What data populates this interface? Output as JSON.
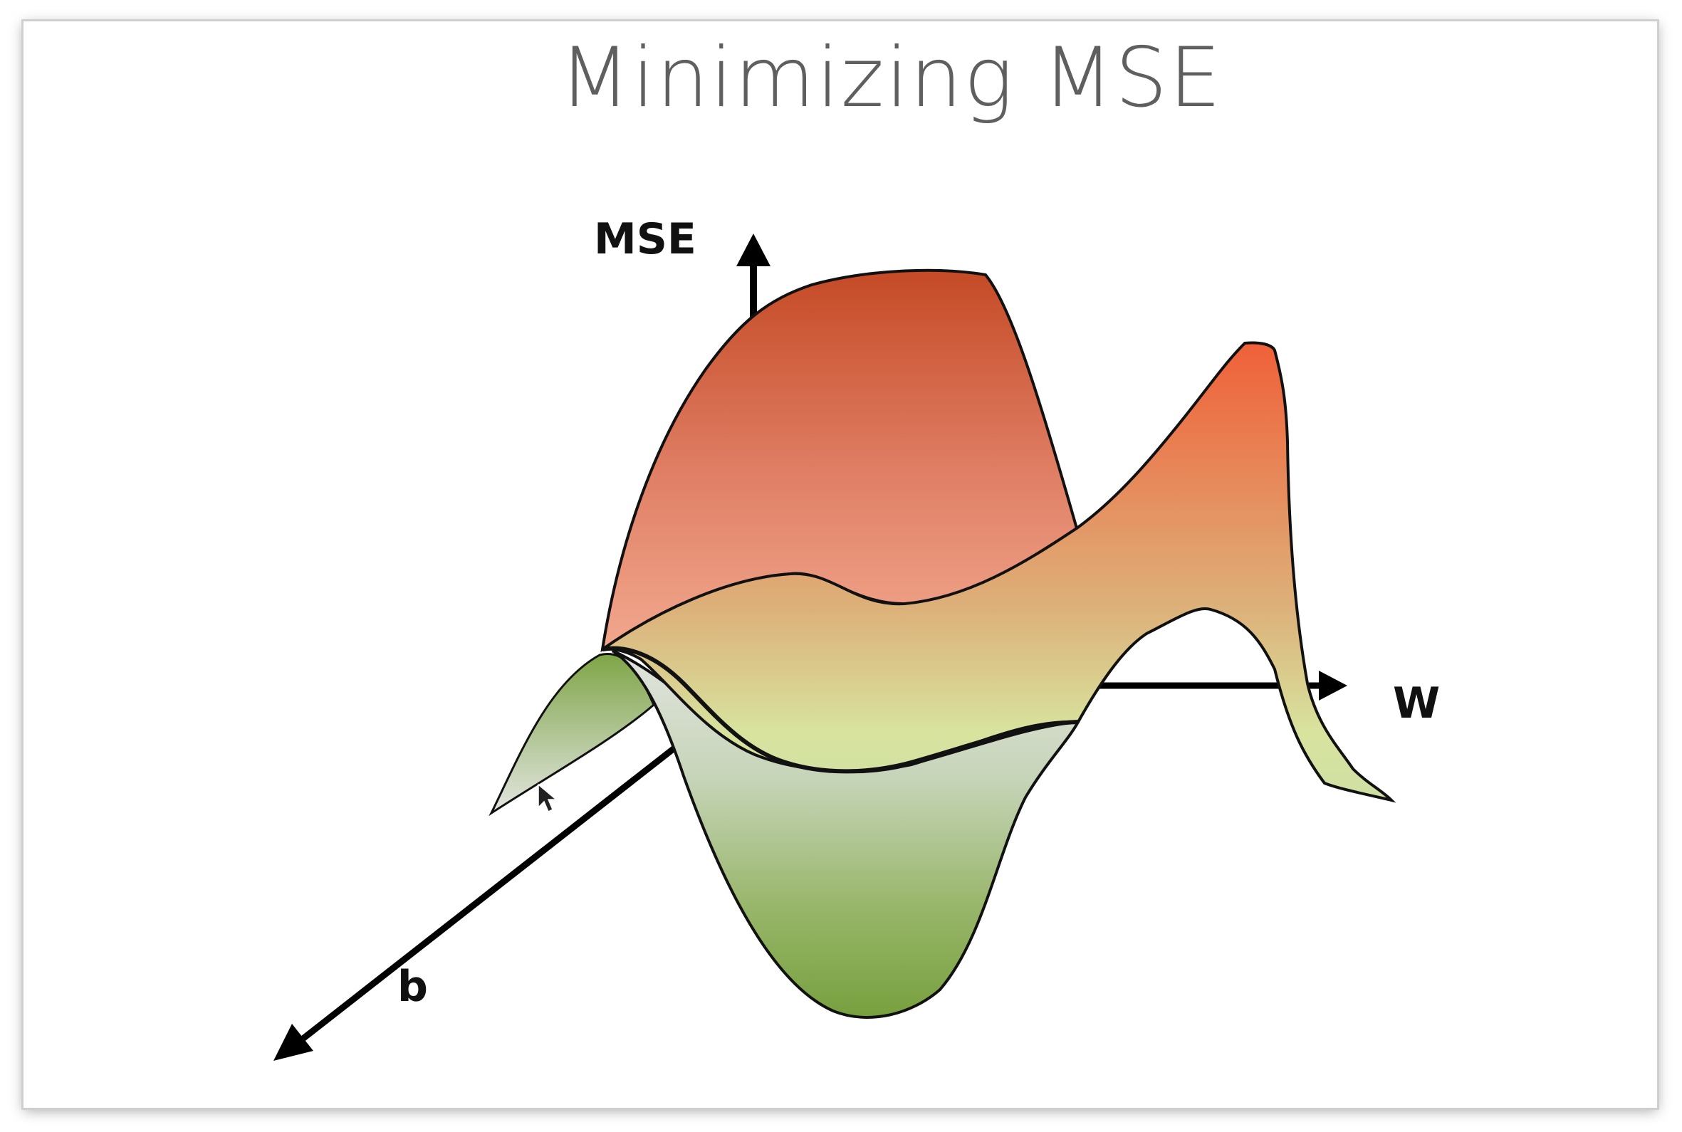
{
  "slide": {
    "title": "Minimizing MSE"
  },
  "axes": {
    "vertical_label": "MSE",
    "right_label": "W",
    "depth_label": "b"
  },
  "colors": {
    "peak_red": "#c54a26",
    "peak_light": "#ee9c82",
    "ridge_orange": "#f06038",
    "mid_tan": "#dcae78",
    "low_yellow": "#d8e39e",
    "valley_green": "#7fa546",
    "valley_light": "#dde0da",
    "outline": "#111111"
  }
}
